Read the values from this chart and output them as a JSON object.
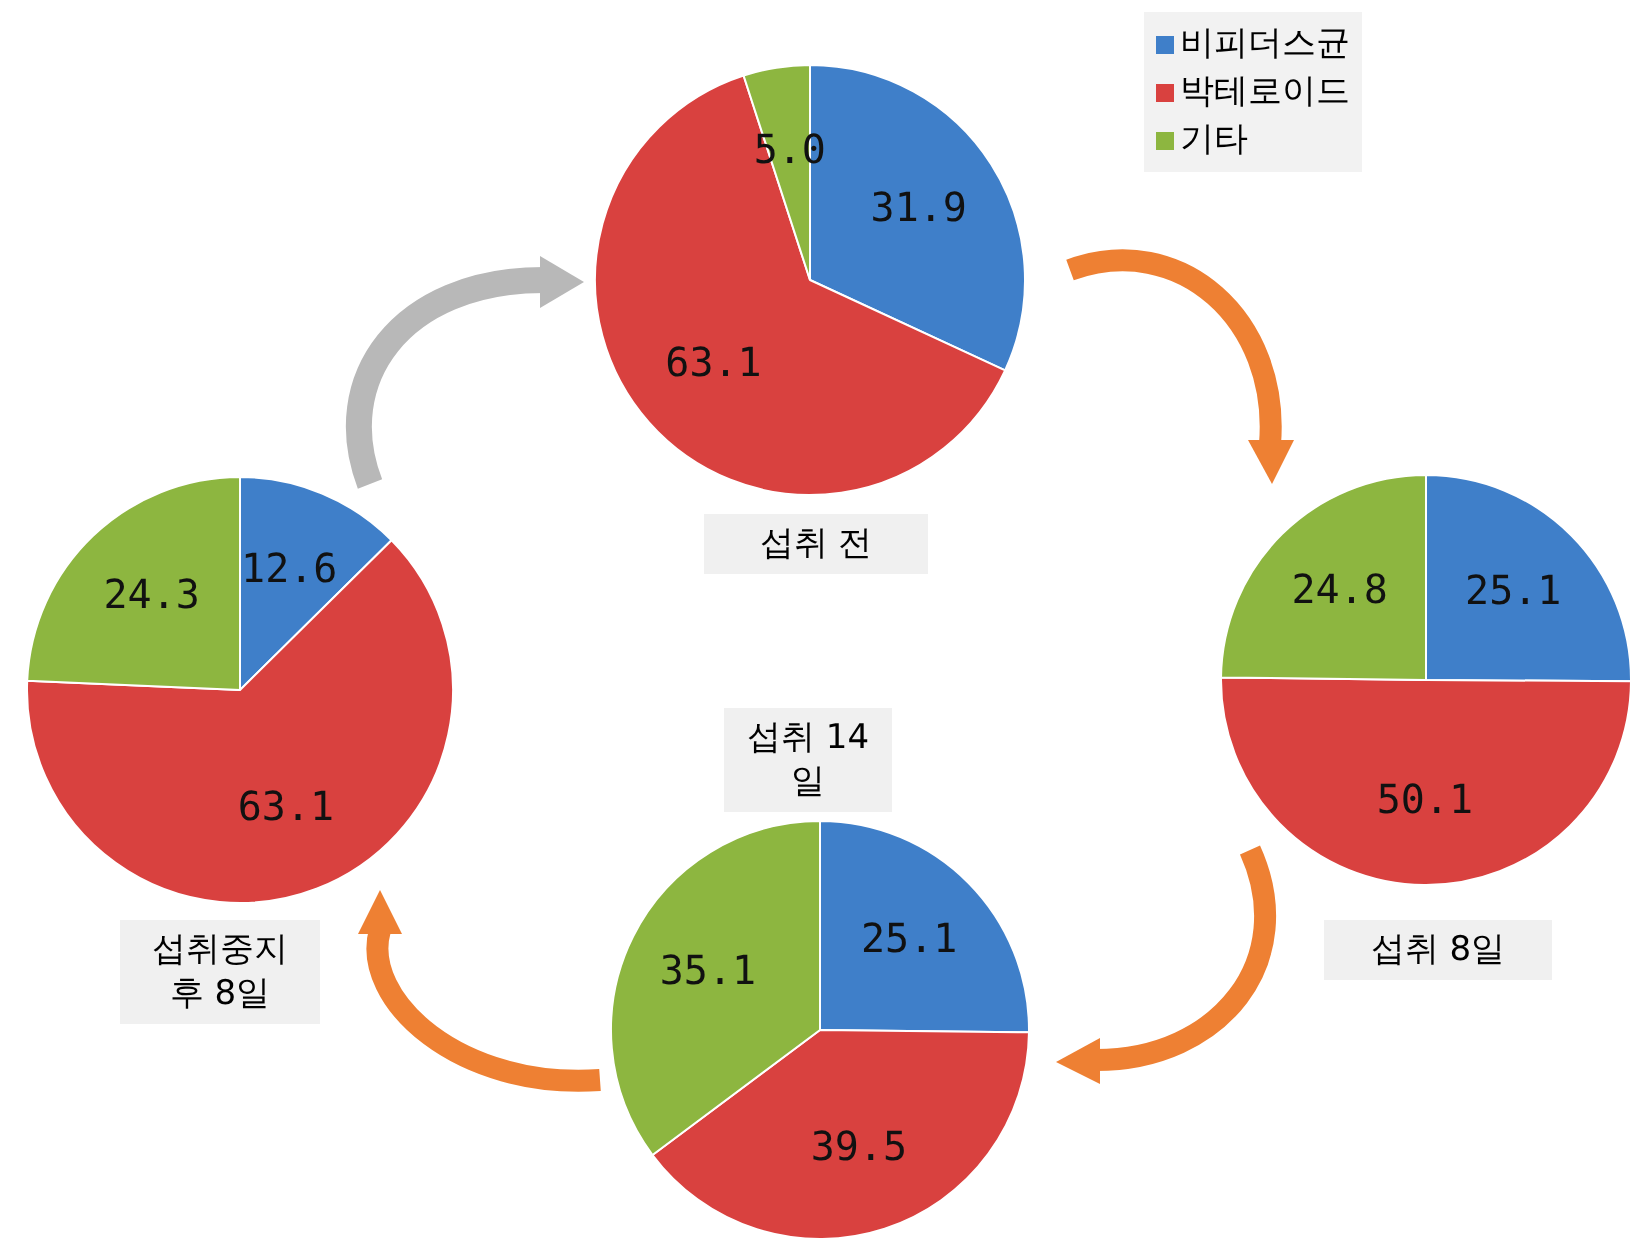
{
  "chart_data": [
    {
      "type": "pie",
      "title": "섭취 전",
      "categories": [
        "비피더스균",
        "박테로이드",
        "기타"
      ],
      "values": [
        31.9,
        63.1,
        5.0
      ],
      "colors": [
        "#3f7fc9",
        "#d9413f",
        "#8db640"
      ],
      "value_labels": [
        "31.9",
        "63.1",
        "5.0"
      ],
      "legend": "right"
    },
    {
      "type": "pie",
      "title": "섭취 8일",
      "categories": [
        null,
        null,
        null
      ],
      "values": [
        25.1,
        50.1,
        24.8
      ],
      "colors": [
        "#3f7fc9",
        "#d9413f",
        "#8db640"
      ],
      "data_labels": true
    },
    {
      "type": "pie",
      "title": "섭취 14일",
      "categories": [
        null,
        null,
        null
      ],
      "values": [
        25.1,
        39.5,
        35.1
      ],
      "colors": [
        "#3f7fc9",
        "#d9413f",
        "#8db640"
      ],
      "data_labels": true
    },
    {
      "type": "pie",
      "title": "섭취중지 후 8일",
      "categories": [
        null,
        null,
        null
      ],
      "values": [
        12.6,
        63.1,
        24.3
      ],
      "colors": [
        "#3f7fc9",
        "#d9413f",
        "#8db640"
      ],
      "data_labels": true
    }
  ]
}
